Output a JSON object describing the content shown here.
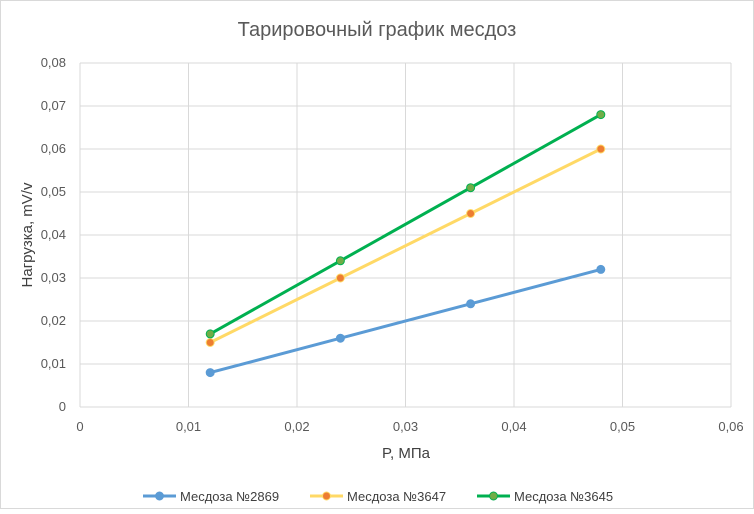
{
  "chart_data": {
    "type": "scatter",
    "title": "Тарировочный график месдоз",
    "xlabel": "P, МПа",
    "ylabel": "Нагрузка, mV/v",
    "xlim": [
      0,
      0.06
    ],
    "ylim": [
      0,
      0.08
    ],
    "x_ticks": [
      "0",
      "0,01",
      "0,02",
      "0,03",
      "0,04",
      "0,05",
      "0,06"
    ],
    "y_ticks": [
      "0",
      "0,01",
      "0,02",
      "0,03",
      "0,04",
      "0,05",
      "0,06",
      "0,07",
      "0,08"
    ],
    "grid": true,
    "legend_position": "bottom",
    "series": [
      {
        "name": "Месдоза №2869",
        "color": "#5B9BD5",
        "marker_color": "#5B9BD5",
        "x": [
          0.012,
          0.024,
          0.036,
          0.048
        ],
        "y": [
          0.008,
          0.016,
          0.024,
          0.032
        ]
      },
      {
        "name": "Месдоза №3647",
        "color": "#FFD966",
        "marker_color": "#ED7D31",
        "x": [
          0.012,
          0.024,
          0.036,
          0.048
        ],
        "y": [
          0.015,
          0.03,
          0.045,
          0.06
        ]
      },
      {
        "name": "Месдоза №3645",
        "color": "#00B050",
        "marker_color": "#70AD47",
        "x": [
          0.012,
          0.024,
          0.036,
          0.048
        ],
        "y": [
          0.017,
          0.034,
          0.051,
          0.068
        ]
      }
    ]
  }
}
